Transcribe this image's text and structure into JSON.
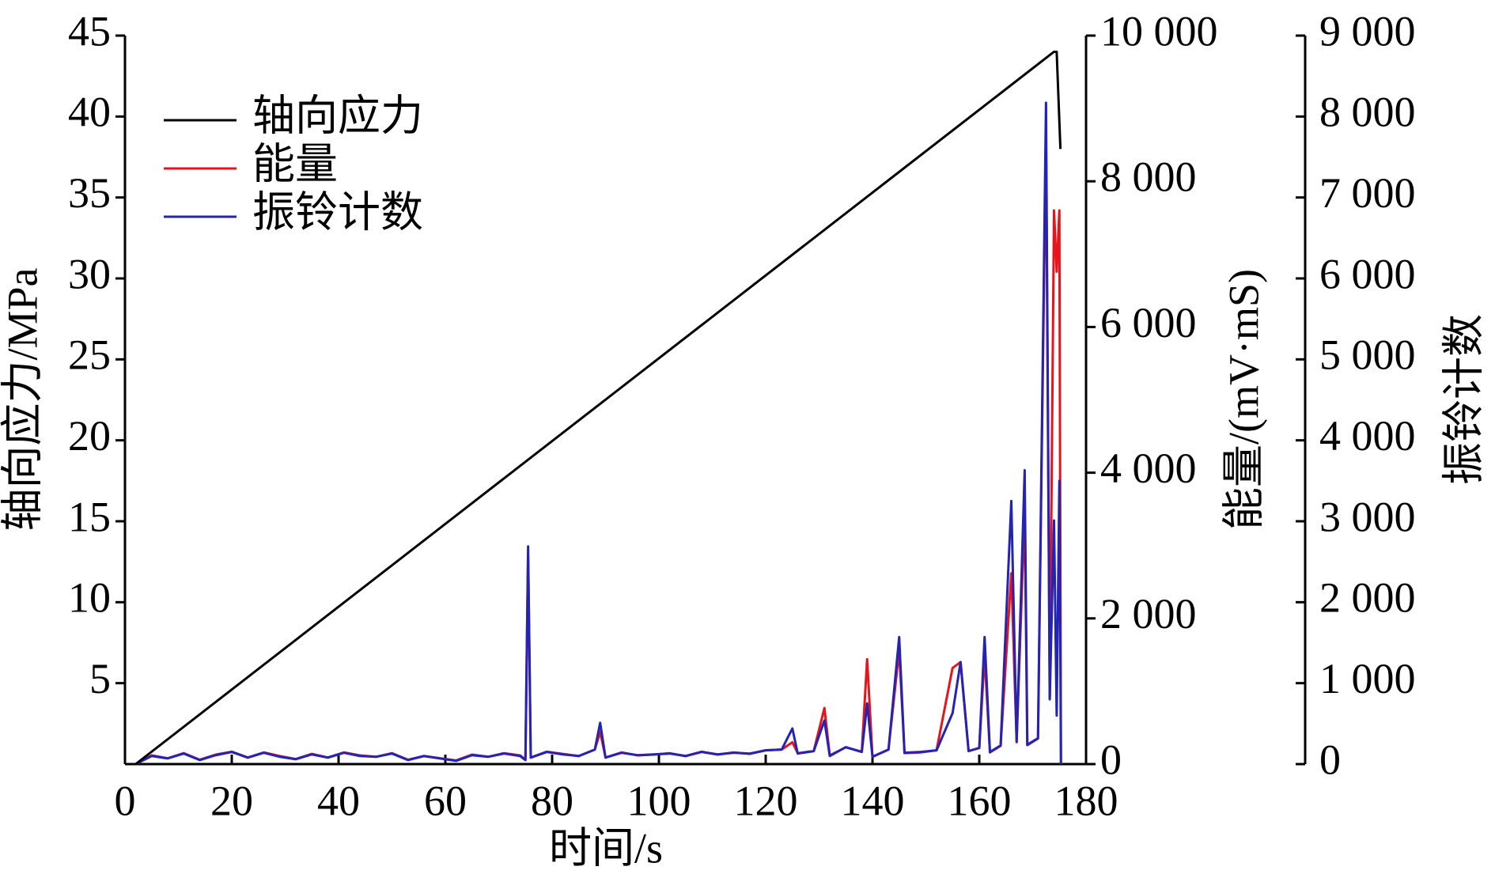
{
  "chart_data": {
    "type": "line",
    "x_label": "时间/s",
    "y_label": "轴向应力/MPa",
    "y2_label": "能量/(mV·mS)",
    "y3_label": "振铃计数",
    "xlim": [
      0,
      180
    ],
    "xticks": [
      0,
      20,
      40,
      60,
      80,
      100,
      120,
      140,
      160,
      180
    ],
    "ylim": [
      0,
      45
    ],
    "yticks": [
      5,
      10,
      15,
      20,
      25,
      30,
      35,
      40,
      45
    ],
    "y2lim": [
      0,
      10000
    ],
    "y2ticks": [
      0,
      {
        "value": 2000,
        "label": "2 000"
      },
      {
        "value": 4000,
        "label": "4 000"
      },
      {
        "value": 6000,
        "label": "6 000"
      },
      {
        "value": 8000,
        "label": "8 000"
      },
      {
        "value": 10000,
        "label": "10 000"
      }
    ],
    "y3lim": [
      0,
      9000
    ],
    "y3ticks": [
      0,
      {
        "value": 1000,
        "label": "1 000"
      },
      {
        "value": 2000,
        "label": "2 000"
      },
      {
        "value": 3000,
        "label": "3 000"
      },
      {
        "value": 4000,
        "label": "4 000"
      },
      {
        "value": 5000,
        "label": "5 000"
      },
      {
        "value": 6000,
        "label": "6 000"
      },
      {
        "value": 7000,
        "label": "7 000"
      },
      {
        "value": 8000,
        "label": "8 000"
      },
      {
        "value": 9000,
        "label": "9 000"
      }
    ],
    "legend": "upper left",
    "series": [
      {
        "name": "轴向应力",
        "color": "#000000",
        "axis": "y",
        "x": [
          2,
          174,
          174.5,
          175.2
        ],
        "values": [
          0,
          44,
          44,
          38
        ]
      },
      {
        "name": "能量",
        "color": "#e8141b",
        "axis": "y2",
        "x": [
          2,
          5,
          8,
          11,
          14,
          17,
          20,
          23,
          26,
          29,
          32,
          35,
          38,
          41,
          44,
          47,
          50,
          53,
          56,
          59,
          62,
          65,
          68,
          71,
          74,
          75,
          75.5,
          76,
          79,
          82,
          85,
          88,
          89,
          90,
          93,
          96,
          99,
          102,
          105,
          108,
          111,
          114,
          117,
          120,
          123,
          125,
          126,
          129,
          131,
          132,
          135,
          138,
          139,
          140,
          143,
          145,
          146,
          149,
          152,
          155,
          156.5,
          158,
          160,
          161,
          162,
          164,
          166,
          167,
          168.5,
          169,
          171,
          172.5,
          173.2,
          174,
          174.5,
          175,
          175.3
        ],
        "values": [
          0,
          120,
          80,
          150,
          60,
          130,
          170,
          90,
          160,
          110,
          70,
          140,
          90,
          160,
          120,
          100,
          150,
          60,
          110,
          80,
          50,
          130,
          100,
          150,
          120,
          60,
          2880,
          90,
          170,
          140,
          110,
          200,
          440,
          90,
          160,
          120,
          130,
          150,
          110,
          170,
          130,
          160,
          140,
          190,
          200,
          300,
          150,
          180,
          770,
          120,
          230,
          170,
          1440,
          100,
          200,
          1560,
          150,
          160,
          190,
          1320,
          1400,
          180,
          220,
          1490,
          160,
          250,
          2620,
          300,
          3480,
          260,
          350,
          8640,
          900,
          7600,
          6760,
          7600,
          0
        ]
      },
      {
        "name": "振铃计数",
        "color": "#2323b4",
        "axis": "y3",
        "x": [
          2,
          5,
          8,
          11,
          14,
          17,
          20,
          23,
          26,
          29,
          32,
          35,
          38,
          41,
          44,
          47,
          50,
          53,
          56,
          59,
          62,
          65,
          68,
          71,
          74,
          75,
          75.5,
          76,
          79,
          82,
          85,
          88,
          89,
          90,
          93,
          96,
          99,
          102,
          105,
          108,
          111,
          114,
          117,
          120,
          123,
          125,
          126,
          129,
          131,
          132,
          135,
          138,
          139,
          140,
          143,
          145,
          146,
          149,
          152,
          155,
          156.5,
          158,
          160,
          161,
          162,
          164,
          166,
          167,
          168.5,
          169,
          171,
          172.5,
          173.2,
          174,
          174.5,
          175,
          175.3
        ],
        "values": [
          0,
          100,
          70,
          130,
          50,
          110,
          150,
          80,
          140,
          90,
          60,
          120,
          80,
          140,
          100,
          90,
          130,
          50,
          100,
          70,
          40,
          110,
          90,
          130,
          100,
          50,
          2690,
          80,
          150,
          120,
          100,
          180,
          510,
          80,
          140,
          110,
          120,
          130,
          100,
          150,
          120,
          140,
          130,
          170,
          180,
          440,
          130,
          160,
          540,
          100,
          210,
          150,
          750,
          90,
          180,
          1570,
          140,
          150,
          170,
          630,
          1260,
          160,
          200,
          1570,
          150,
          230,
          3250,
          280,
          3630,
          240,
          320,
          8170,
          800,
          3010,
          600,
          3500,
          0
        ]
      }
    ]
  }
}
